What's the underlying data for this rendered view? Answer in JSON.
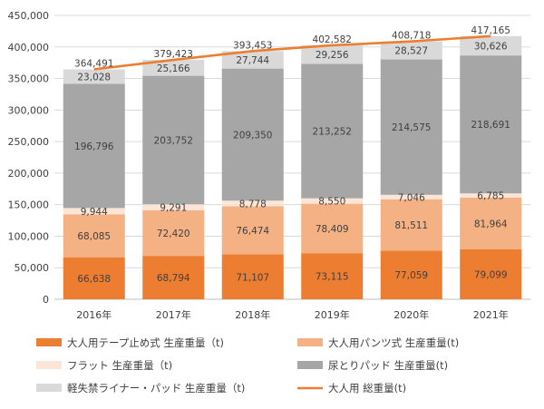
{
  "chart_data": {
    "type": "bar",
    "stacked": true,
    "categories": [
      "2016年",
      "2017年",
      "2018年",
      "2019年",
      "2020年",
      "2021年"
    ],
    "series": [
      {
        "name": "大人用テープ止め式 生産重量（t)",
        "color": "#ED7D31",
        "values": [
          66638,
          68794,
          71107,
          73115,
          77059,
          79099
        ]
      },
      {
        "name": "大人用パンツ式 生産重量(t)",
        "color": "#F4B183",
        "values": [
          68085,
          72420,
          76474,
          78409,
          81511,
          81964
        ]
      },
      {
        "name": "フラット 生産重量（t)",
        "color": "#FBE5D6",
        "values": [
          9944,
          9291,
          8778,
          8550,
          7046,
          6785
        ]
      },
      {
        "name": "尿とりパッド 生産重量(t)",
        "color": "#A6A6A6",
        "values": [
          196796,
          203752,
          209350,
          213252,
          214575,
          218691
        ]
      },
      {
        "name": "軽失禁ライナー・パッド 生産重量（t)",
        "color": "#D9D9D9",
        "values": [
          23028,
          25166,
          27744,
          29256,
          28527,
          30626
        ]
      }
    ],
    "line_series": {
      "name": "大人用 総重量(t)",
      "color": "#ED7D31",
      "values": [
        364491,
        379423,
        393453,
        402582,
        408718,
        417165
      ]
    },
    "value_labels": {
      "segments": [
        [
          "66,638",
          "68,085",
          "9,944",
          "196,796",
          "23,028"
        ],
        [
          "68,794",
          "72,420",
          "9,291",
          "203,752",
          "25,166"
        ],
        [
          "71,107",
          "76,474",
          "8,778",
          "209,350",
          "27,744"
        ],
        [
          "73,115",
          "78,409",
          "8,550",
          "213,252",
          "29,256"
        ],
        [
          "77,059",
          "81,511",
          "7,046",
          "214,575",
          "28,527"
        ],
        [
          "79,099",
          "81,964",
          "6,785",
          "218,691",
          "30,626"
        ]
      ],
      "totals": [
        "364,491",
        "379,423",
        "393,453",
        "402,582",
        "408,718",
        "417,165"
      ]
    },
    "y_ticks": [
      "0",
      "50,000",
      "100,000",
      "150,000",
      "200,000",
      "250,000",
      "300,000",
      "350,000",
      "400,000",
      "450,000"
    ],
    "ylim": [
      0,
      450000
    ],
    "grid": true,
    "legend_position": "bottom"
  }
}
